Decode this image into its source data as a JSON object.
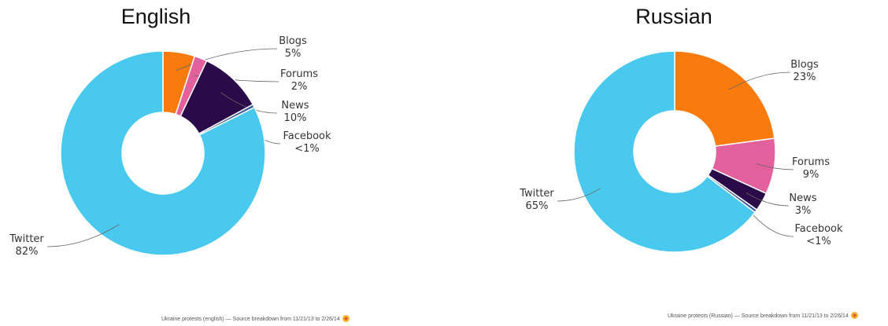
{
  "chart_data": [
    {
      "type": "pie",
      "title": "English",
      "slices": [
        {
          "label": "Blogs",
          "value_label": "5%",
          "value": 5,
          "color": "#f97a0d"
        },
        {
          "label": "Forums",
          "value_label": "2%",
          "value": 2,
          "color": "#e2619d"
        },
        {
          "label": "News",
          "value_label": "10%",
          "value": 10,
          "color": "#2b0a4a"
        },
        {
          "label": "Facebook",
          "value_label": "<1%",
          "value": 0.5,
          "color": "#3b5a9a"
        },
        {
          "label": "Twitter",
          "value_label": "82%",
          "value": 82,
          "color": "#4ac9ef"
        }
      ],
      "caption": "Ukraine protests (english) — Source breakdown from 11/21/13 to 2/26/14"
    },
    {
      "type": "pie",
      "title": "Russian",
      "slices": [
        {
          "label": "Blogs",
          "value_label": "23%",
          "value": 23,
          "color": "#f97a0d"
        },
        {
          "label": "Forums",
          "value_label": "9%",
          "value": 9,
          "color": "#e2619d"
        },
        {
          "label": "News",
          "value_label": "3%",
          "value": 3,
          "color": "#2b0a4a"
        },
        {
          "label": "Facebook",
          "value_label": "<1%",
          "value": 0.5,
          "color": "#3b5a9a"
        },
        {
          "label": "Twitter",
          "value_label": "65%",
          "value": 65,
          "color": "#4ac9ef"
        }
      ],
      "caption": "Ukraine protests (Russian) — Source breakdown from 11/21/13 to 2/26/14"
    }
  ]
}
